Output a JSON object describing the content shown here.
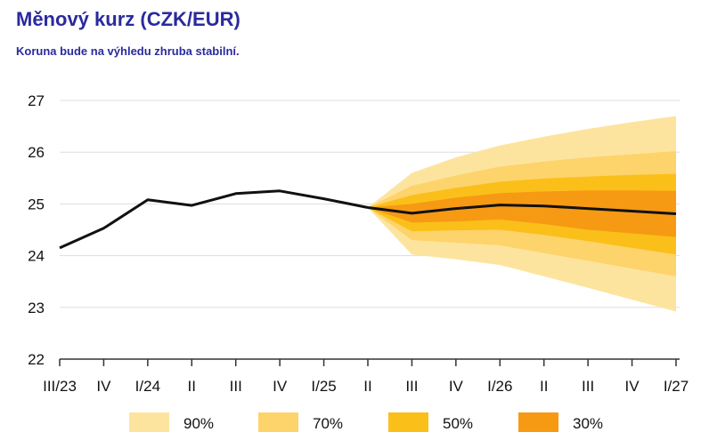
{
  "header": {
    "title": "Měnový kurz (CZK/EUR)",
    "subtitle": "Koruna bude na výhledu zhruba stabilní."
  },
  "chart_data": {
    "type": "area",
    "categories": [
      "III/23",
      "IV",
      "I/24",
      "II",
      "III",
      "IV",
      "I/25",
      "II",
      "III",
      "IV",
      "I/26",
      "II",
      "III",
      "IV",
      "I/27"
    ],
    "ylim": [
      22,
      27
    ],
    "yticks": [
      22,
      23,
      24,
      25,
      26,
      27
    ],
    "grid": true,
    "legend_position": "bottom",
    "history": {
      "values": [
        24.15,
        24.53,
        25.08,
        24.97,
        25.2,
        25.25,
        25.1,
        24.93
      ]
    },
    "forecast": {
      "start_index": 7,
      "values": [
        24.93,
        24.82,
        24.91,
        24.98,
        24.96,
        24.91,
        24.86,
        24.81
      ]
    },
    "fan_bands": [
      {
        "name": "90%",
        "color": "#fde49e",
        "upper": [
          24.93,
          25.6,
          25.9,
          26.13,
          26.3,
          26.45,
          26.58,
          26.7
        ],
        "lower": [
          24.93,
          24.02,
          23.93,
          23.82,
          23.6,
          23.38,
          23.15,
          22.92
        ]
      },
      {
        "name": "70%",
        "color": "#fdd36b",
        "upper": [
          24.93,
          25.35,
          25.55,
          25.72,
          25.82,
          25.9,
          25.96,
          26.02
        ],
        "lower": [
          24.93,
          24.3,
          24.25,
          24.2,
          24.05,
          23.9,
          23.75,
          23.6
        ]
      },
      {
        "name": "50%",
        "color": "#fbbf1a",
        "upper": [
          24.93,
          25.17,
          25.31,
          25.43,
          25.49,
          25.53,
          25.56,
          25.58
        ],
        "lower": [
          24.93,
          24.47,
          24.49,
          24.5,
          24.4,
          24.28,
          24.15,
          24.02
        ]
      },
      {
        "name": "30%",
        "color": "#f69a13",
        "upper": [
          24.93,
          25.0,
          25.12,
          25.21,
          25.24,
          25.26,
          25.26,
          25.25
        ],
        "lower": [
          24.93,
          24.64,
          24.66,
          24.7,
          24.61,
          24.5,
          24.43,
          24.36
        ]
      }
    ],
    "legend": [
      {
        "label": "90%",
        "color": "#fde49e"
      },
      {
        "label": "70%",
        "color": "#fdd36b"
      },
      {
        "label": "50%",
        "color": "#fbbf1a"
      },
      {
        "label": "30%",
        "color": "#f69a13"
      }
    ],
    "colors": {
      "line": "#111111",
      "grid": "#dddddd",
      "title": "#2a2a9e"
    }
  }
}
